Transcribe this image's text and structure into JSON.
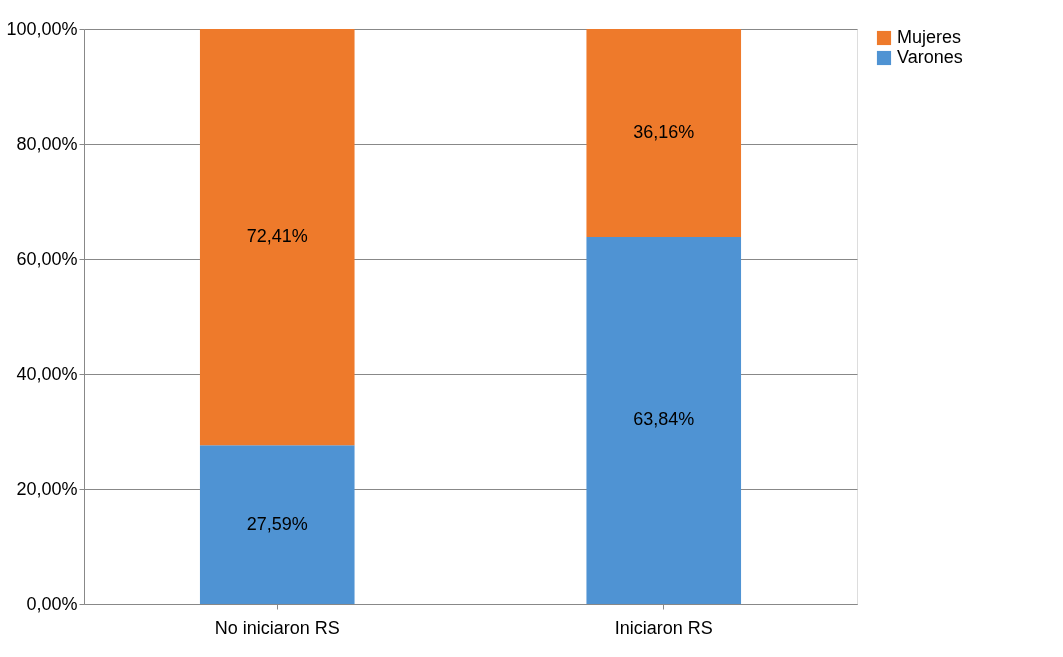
{
  "chart_data": {
    "type": "bar",
    "stacked": true,
    "categories": [
      "No iniciaron RS",
      "Iniciaron RS"
    ],
    "series": [
      {
        "name": "Varones",
        "color": "#4f93d3",
        "values": [
          27.59,
          63.84
        ],
        "value_labels": [
          "27,59%",
          "63,84%"
        ]
      },
      {
        "name": "Mujeres",
        "color": "#ee7a2b",
        "values": [
          72.41,
          36.16
        ],
        "value_labels": [
          "72,41%",
          "36,16%"
        ]
      }
    ],
    "ylim": [
      0,
      100
    ],
    "yticks": [
      {
        "value": 0,
        "label": "0,00%"
      },
      {
        "value": 20,
        "label": "20,00%"
      },
      {
        "value": 40,
        "label": "40,00%"
      },
      {
        "value": 60,
        "label": "60,00%"
      },
      {
        "value": 80,
        "label": "80,00%"
      },
      {
        "value": 100,
        "label": "100,00%"
      }
    ],
    "grid": "y",
    "legend": "right"
  }
}
